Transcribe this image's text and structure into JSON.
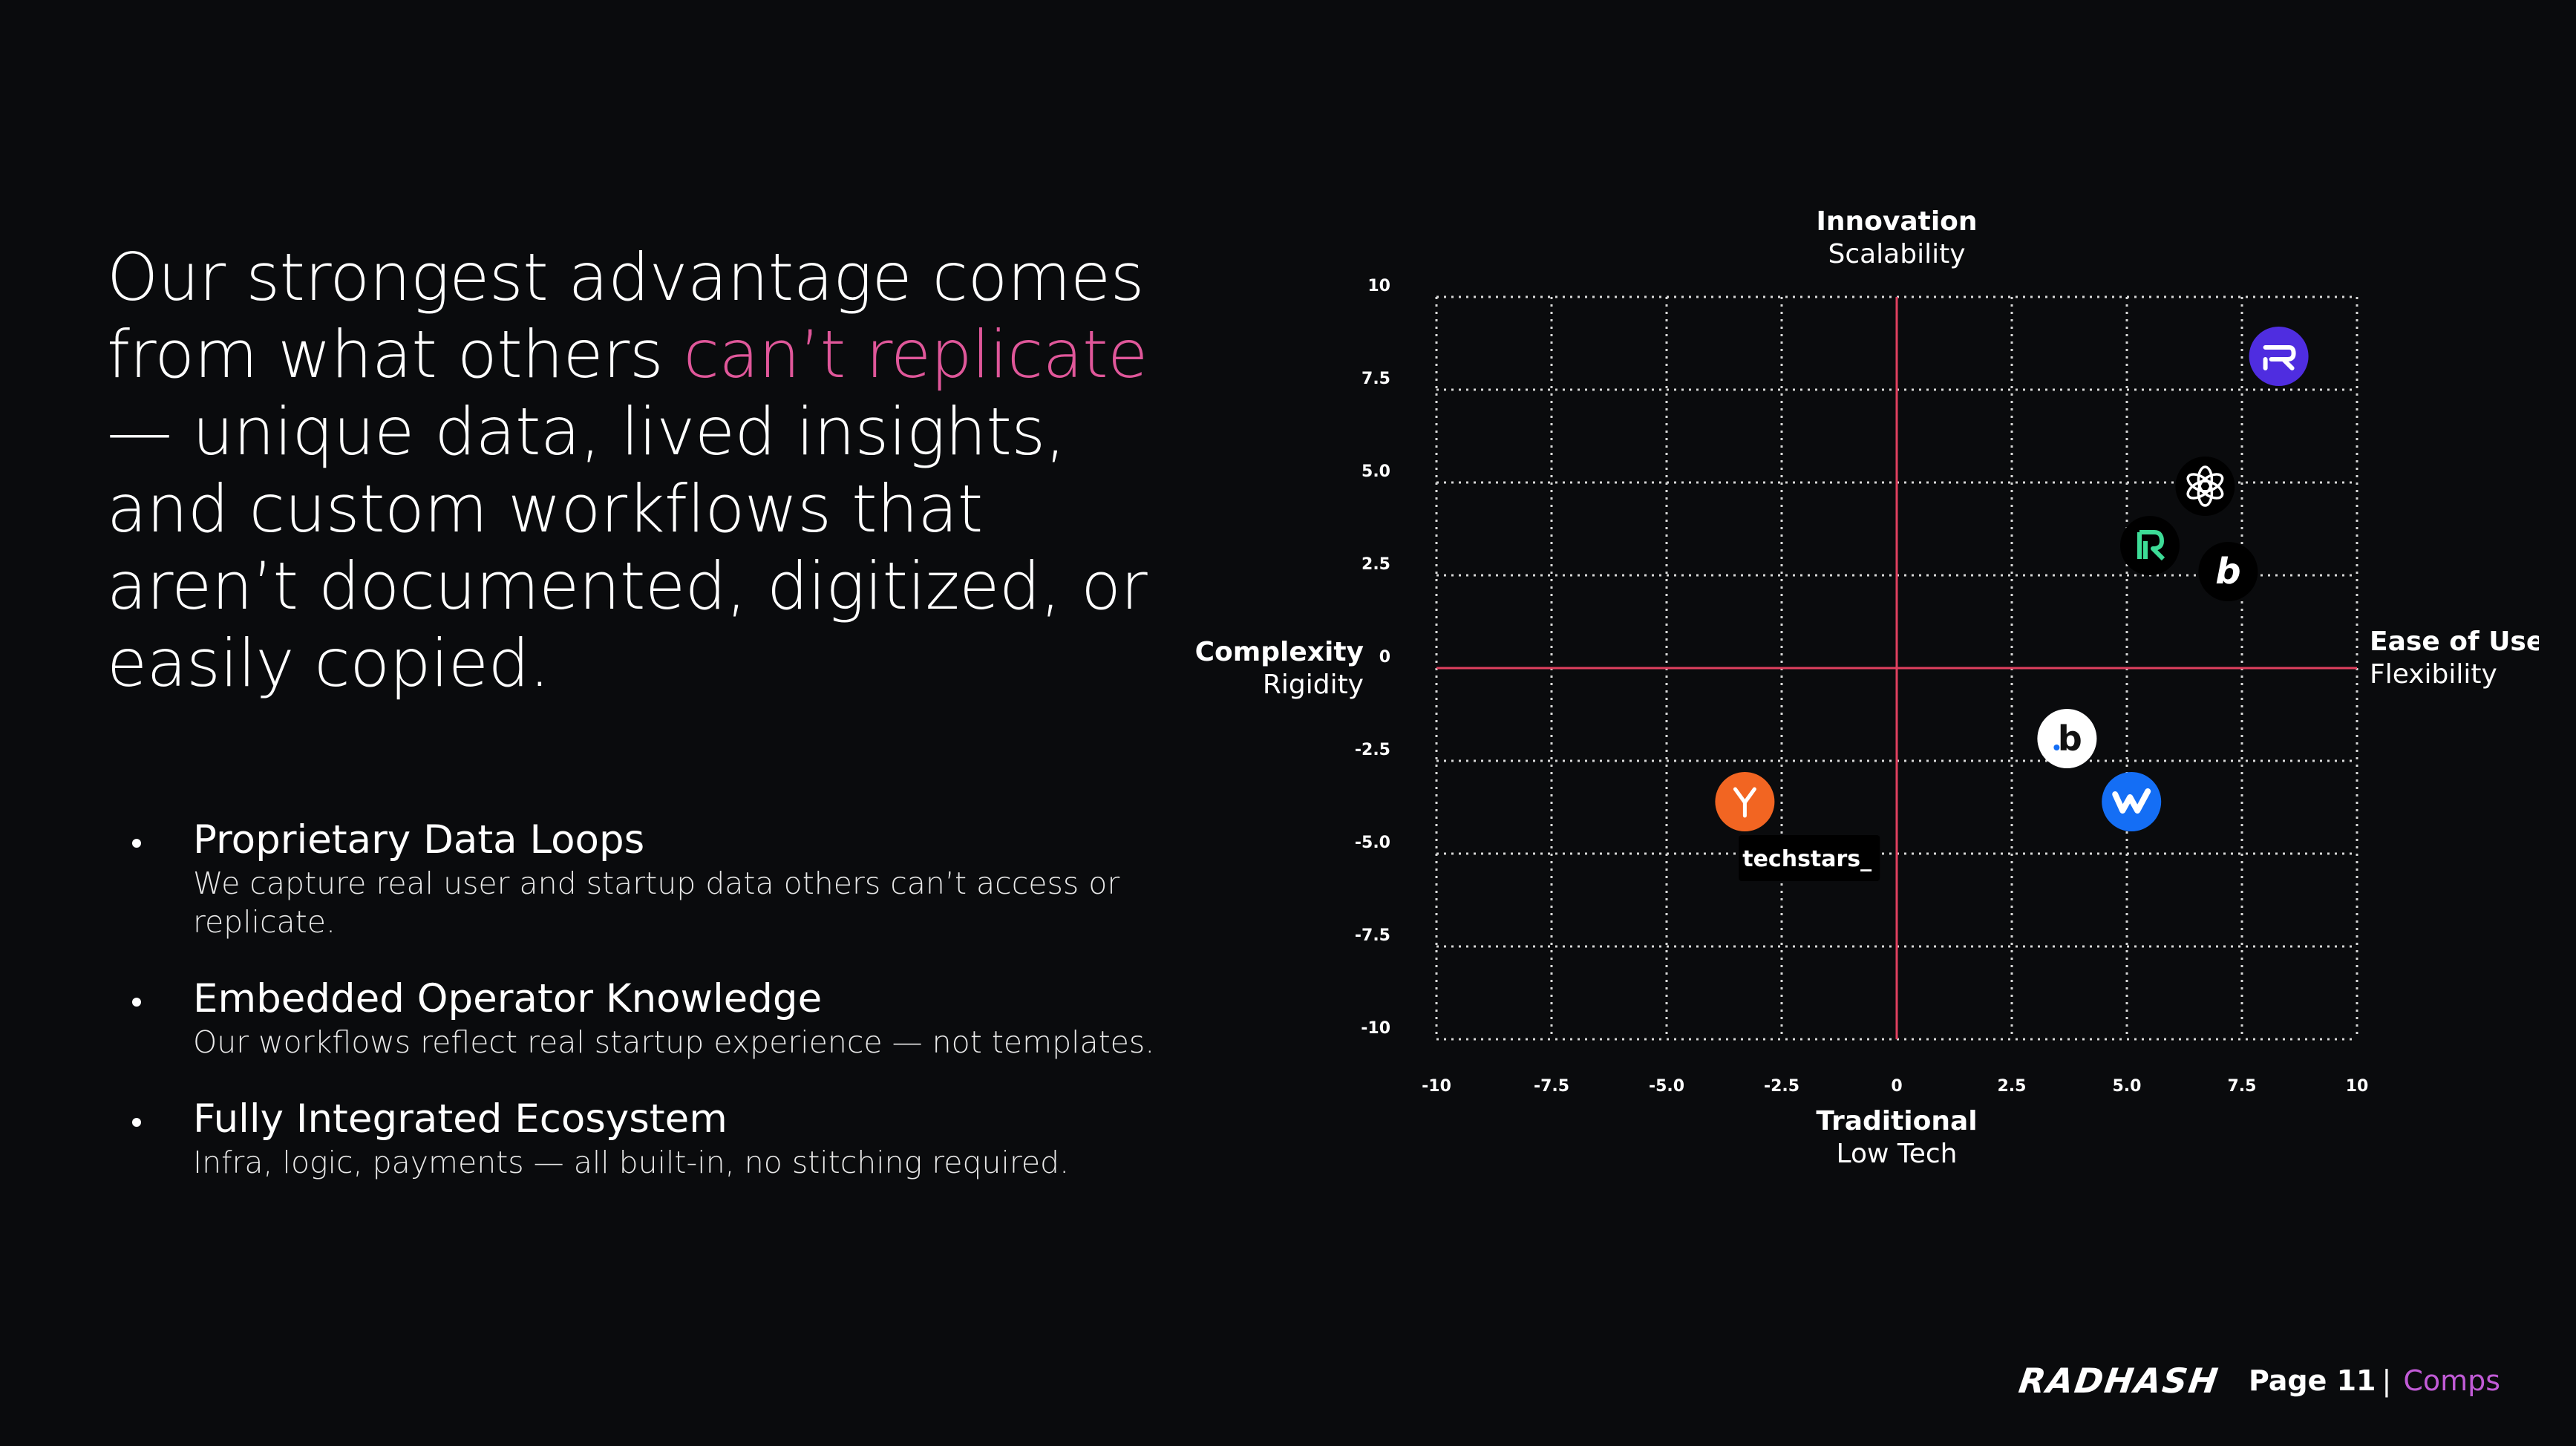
{
  "headline": {
    "part1": "Our strongest advantage comes from what others ",
    "accent": "can’t replicate",
    "part2": " — unique data, lived insights, and custom workflows that aren’t documented, digitized, or easily copied."
  },
  "bullets": [
    {
      "title": "Proprietary Data Loops",
      "desc": "We capture real user and startup data others can’t access or replicate."
    },
    {
      "title": "Embedded Operator Knowledge",
      "desc": "Our workflows reflect real startup experience — not templates."
    },
    {
      "title": "Fully Integrated Ecosystem",
      "desc": "Infra, logic, payments — all built-in, no stitching required."
    }
  ],
  "colors": {
    "accent": "#e0579a",
    "axis": "#e0405f",
    "section": "#c15bd6"
  },
  "chart_data": {
    "type": "scatter",
    "axes": {
      "top": {
        "title": "Innovation",
        "subtitle": "Scalability"
      },
      "bottom": {
        "title": "Traditional",
        "subtitle": "Low Tech"
      },
      "left": {
        "title": "Complexity",
        "subtitle": "Rigidity"
      },
      "right": {
        "title": "Ease of Use",
        "subtitle": "Flexibility"
      }
    },
    "xlim": [
      -10,
      10
    ],
    "ylim": [
      -10,
      10
    ],
    "x_ticks": [
      "-10",
      "-7.5",
      "-5.0",
      "-2.5",
      "0",
      "2.5",
      "5.0",
      "7.5",
      "10"
    ],
    "x_tick_values": [
      -10,
      -7.5,
      -5,
      -2.5,
      0,
      2.5,
      5,
      7.5,
      10
    ],
    "y_ticks": [
      "10",
      "7.5",
      "5.0",
      "2.5",
      "0",
      "-2.5",
      "-5.0",
      "-7.5",
      "-10"
    ],
    "y_tick_values": [
      10,
      7.5,
      5,
      2.5,
      0,
      -2.5,
      -5,
      -7.5,
      -10
    ],
    "grid": true,
    "points": [
      {
        "icon": "radhash-logo-icon",
        "x": 8.3,
        "y": 8.4,
        "color": "#4f2de0"
      },
      {
        "icon": "openai-logo-icon",
        "x": 6.7,
        "y": 4.9,
        "color": "#000000"
      },
      {
        "icon": "replit-style-logo-icon",
        "x": 5.5,
        "y": 3.3,
        "color": "#000000"
      },
      {
        "icon": "bolt-logo-icon",
        "x": 7.2,
        "y": 2.6,
        "color": "#000000"
      },
      {
        "icon": "dot-b-logo-icon",
        "x": 3.7,
        "y": -1.9,
        "color": "#ffffff"
      },
      {
        "icon": "webflow-logo-icon",
        "x": 5.1,
        "y": -3.6,
        "color": "#146ef5"
      },
      {
        "icon": "y-combinator-logo-icon",
        "x": -3.3,
        "y": -3.6,
        "color": "#f26522"
      },
      {
        "icon": "techstars-logo-icon",
        "x": -1.9,
        "y": -5.1,
        "color": "#000000",
        "text": "techstars_"
      }
    ]
  },
  "footer": {
    "brand": "RADHASH",
    "page": "Page 11",
    "sep": "|",
    "section": "Comps"
  }
}
